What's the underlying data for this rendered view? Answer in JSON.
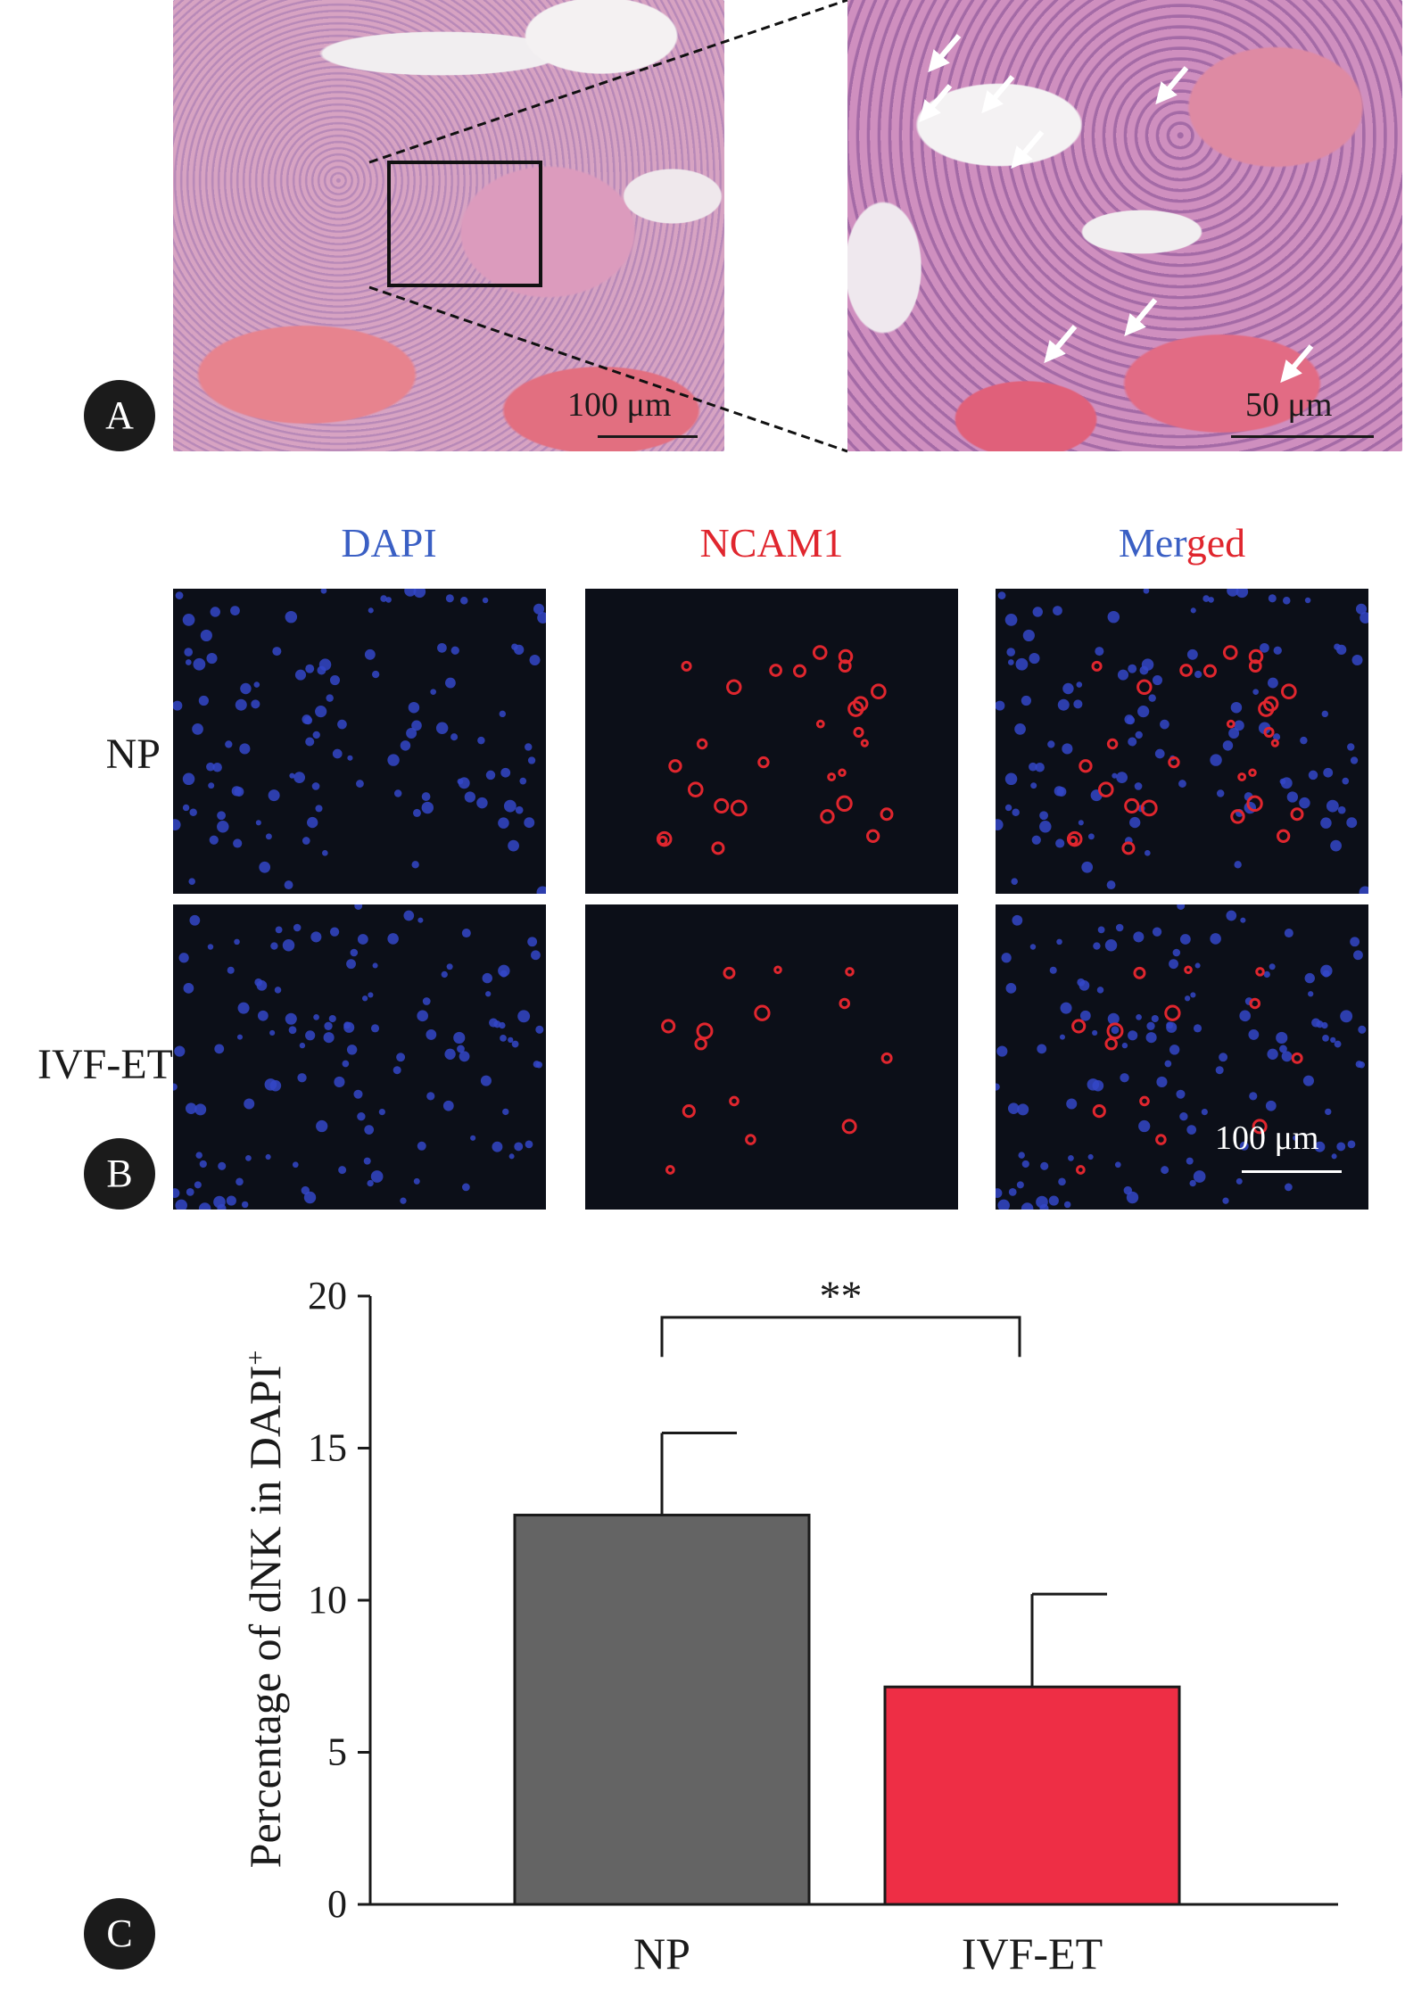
{
  "panels": {
    "a_label": "A",
    "b_label": "B",
    "c_label": "C"
  },
  "panel_a": {
    "scale_left": "100 μm",
    "scale_right": "50 μm",
    "arrow_icon": "white-arrow-icon",
    "colors": {
      "he_pink": "#d69ac1",
      "nucleus_purple": "#5b2e7a"
    }
  },
  "panel_b": {
    "columns": [
      {
        "label": "DAPI",
        "color": "#3a5fc4"
      },
      {
        "label": "NCAM1",
        "color": "#e0262e"
      },
      {
        "label_part1": "Mer",
        "label_part2": "ged",
        "color1": "#3a5fc4",
        "color2": "#e0262e"
      }
    ],
    "rows": [
      "NP",
      "IVF-ET"
    ],
    "scale": "100 μm"
  },
  "chart_data": {
    "type": "bar",
    "categories": [
      "NP",
      "IVF-ET"
    ],
    "values": [
      12.8,
      7.15
    ],
    "errors": [
      2.7,
      3.05
    ],
    "colors": [
      "#646464",
      "#ee2e45"
    ],
    "ylabel": "Percentage of dNK in DAPI",
    "ylabel_sup": "+",
    "ylim": [
      0,
      20
    ],
    "yticks": [
      0,
      5,
      10,
      15,
      20
    ],
    "significance": "**",
    "grid": false
  }
}
